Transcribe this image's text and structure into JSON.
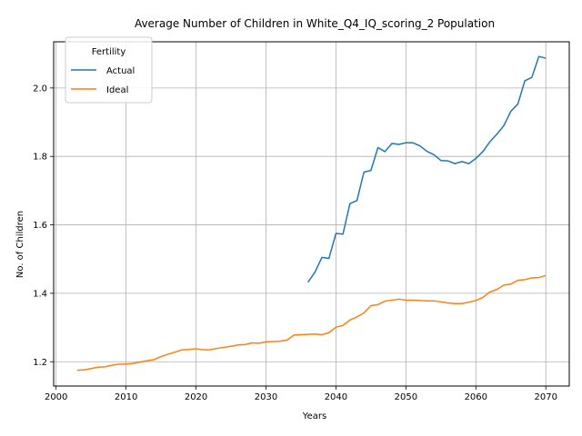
{
  "chart_data": {
    "type": "line",
    "title": "Average Number of Children in White_Q4_IQ_scoring_2 Population",
    "xlabel": "Years",
    "ylabel": "No. of Children",
    "xlim": [
      1999.65,
      2073.35
    ],
    "ylim": [
      1.129,
      2.135
    ],
    "xticks": [
      2000,
      2010,
      2020,
      2030,
      2040,
      2050,
      2060,
      2070
    ],
    "yticks": [
      1.2,
      1.4,
      1.6,
      1.8,
      2.0
    ],
    "ytick_labels": [
      "1.2",
      "1.4",
      "1.6",
      "1.8",
      "2.0"
    ],
    "grid": true,
    "legend": {
      "title": "Fertility",
      "position": "top-left"
    },
    "series": [
      {
        "name": "Actual",
        "color": "#1f77b4",
        "x": [
          2036,
          2037,
          2038,
          2039,
          2040,
          2041,
          2042,
          2043,
          2044,
          2045,
          2046,
          2047,
          2048,
          2049,
          2050,
          2051,
          2052,
          2053,
          2054,
          2055,
          2056,
          2057,
          2058,
          2059,
          2060,
          2061,
          2062,
          2063,
          2064,
          2065,
          2066,
          2067,
          2068,
          2069,
          2070
        ],
        "y": [
          1.432,
          1.462,
          1.505,
          1.502,
          1.575,
          1.573,
          1.662,
          1.671,
          1.754,
          1.759,
          1.826,
          1.814,
          1.838,
          1.835,
          1.84,
          1.84,
          1.831,
          1.815,
          1.805,
          1.788,
          1.787,
          1.779,
          1.785,
          1.779,
          1.794,
          1.814,
          1.843,
          1.865,
          1.89,
          1.932,
          1.953,
          2.021,
          2.031,
          2.092,
          2.087
        ]
      },
      {
        "name": "Ideal",
        "color": "#ff7f0e",
        "x": [
          2003,
          2004,
          2005,
          2006,
          2007,
          2008,
          2009,
          2010,
          2011,
          2012,
          2013,
          2014,
          2015,
          2016,
          2017,
          2018,
          2019,
          2020,
          2021,
          2022,
          2023,
          2024,
          2025,
          2026,
          2027,
          2028,
          2029,
          2030,
          2031,
          2032,
          2033,
          2034,
          2035,
          2036,
          2037,
          2038,
          2039,
          2040,
          2041,
          2042,
          2043,
          2044,
          2045,
          2046,
          2047,
          2048,
          2049,
          2050,
          2051,
          2052,
          2053,
          2054,
          2055,
          2056,
          2057,
          2058,
          2059,
          2060,
          2061,
          2062,
          2063,
          2064,
          2065,
          2066,
          2067,
          2068,
          2069,
          2070
        ],
        "y": [
          1.175,
          1.176,
          1.18,
          1.184,
          1.185,
          1.19,
          1.193,
          1.193,
          1.195,
          1.199,
          1.203,
          1.206,
          1.215,
          1.222,
          1.228,
          1.235,
          1.236,
          1.238,
          1.235,
          1.235,
          1.239,
          1.242,
          1.245,
          1.249,
          1.25,
          1.255,
          1.254,
          1.258,
          1.259,
          1.26,
          1.263,
          1.278,
          1.279,
          1.28,
          1.281,
          1.279,
          1.285,
          1.301,
          1.306,
          1.322,
          1.331,
          1.343,
          1.364,
          1.367,
          1.377,
          1.38,
          1.383,
          1.38,
          1.38,
          1.379,
          1.378,
          1.378,
          1.375,
          1.372,
          1.37,
          1.37,
          1.374,
          1.379,
          1.388,
          1.404,
          1.411,
          1.424,
          1.427,
          1.438,
          1.44,
          1.445,
          1.446,
          1.452
        ]
      }
    ]
  }
}
